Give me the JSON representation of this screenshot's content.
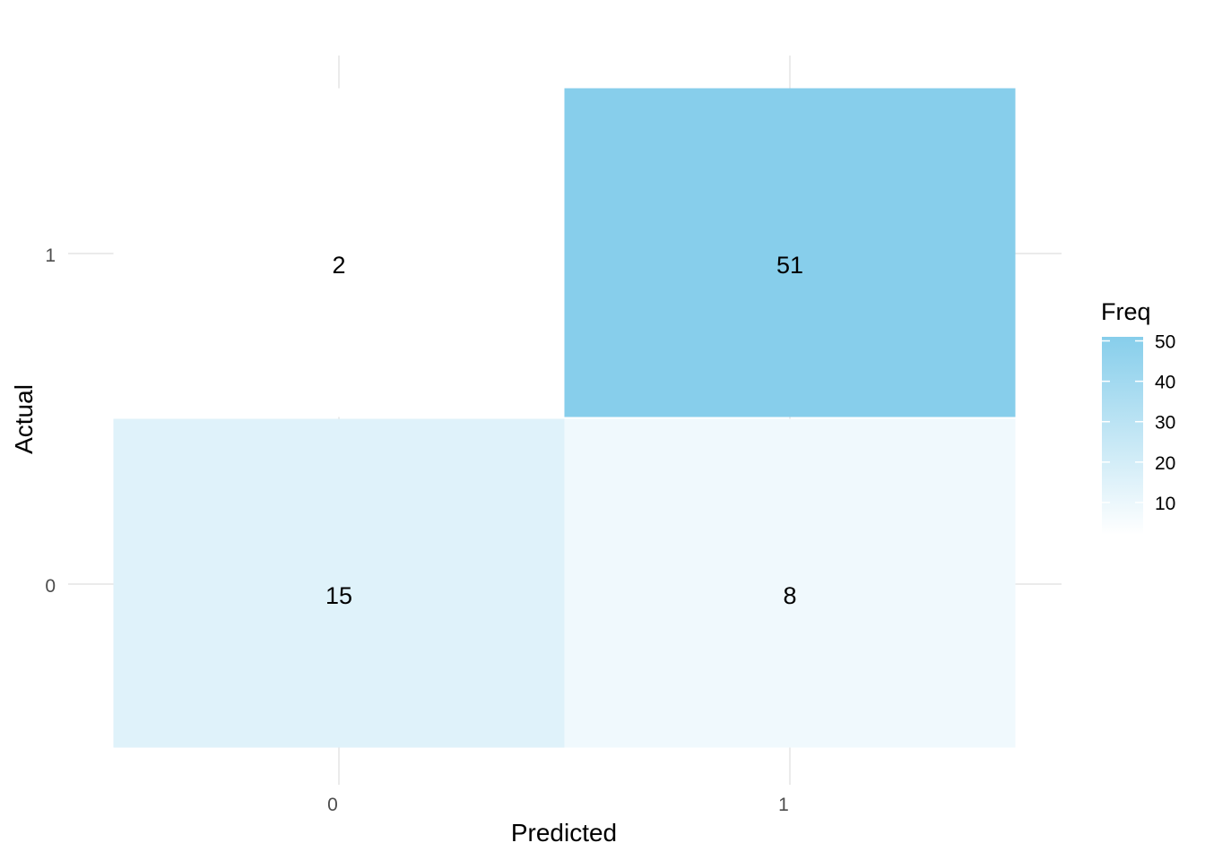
{
  "chart_data": {
    "type": "heatmap",
    "title": "",
    "xlabel": "Predicted",
    "ylabel": "Actual",
    "x_categories": [
      "0",
      "1"
    ],
    "y_categories": [
      "0",
      "1"
    ],
    "cells": [
      {
        "predicted": "0",
        "actual": "1",
        "value": 2
      },
      {
        "predicted": "1",
        "actual": "1",
        "value": 51
      },
      {
        "predicted": "0",
        "actual": "0",
        "value": 15
      },
      {
        "predicted": "1",
        "actual": "0",
        "value": 8
      }
    ],
    "legend": {
      "title": "Freq",
      "ticks": [
        10,
        20,
        30,
        40,
        50
      ],
      "range": [
        2,
        51
      ],
      "position": "right"
    },
    "colors": {
      "low": "#ffffff",
      "high": "#87ceeb",
      "grid": "#ebebeb",
      "tick_text": "#4d4d4d",
      "label_text": "#000000"
    },
    "grid": true
  }
}
